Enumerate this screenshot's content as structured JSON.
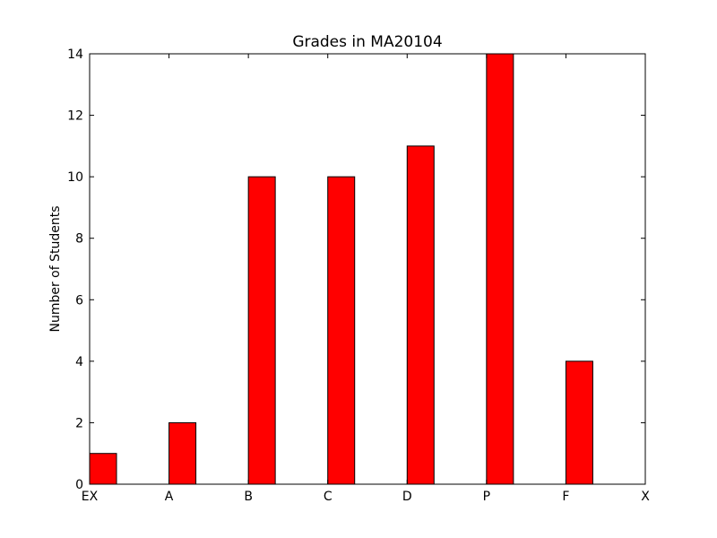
{
  "chart_data": {
    "type": "bar",
    "title": "Grades in MA20104",
    "xlabel": "",
    "ylabel": "Number of Students",
    "categories": [
      "EX",
      "A",
      "B",
      "C",
      "D",
      "P",
      "F",
      "X"
    ],
    "values": [
      1,
      2,
      10,
      10,
      11,
      14,
      4,
      0
    ],
    "ylim": [
      0,
      14
    ],
    "yticks": [
      0,
      2,
      4,
      6,
      8,
      10,
      12,
      14
    ],
    "grid": false,
    "legend": "none",
    "bar_color": "#ff0000",
    "edge_color": "#000000"
  }
}
